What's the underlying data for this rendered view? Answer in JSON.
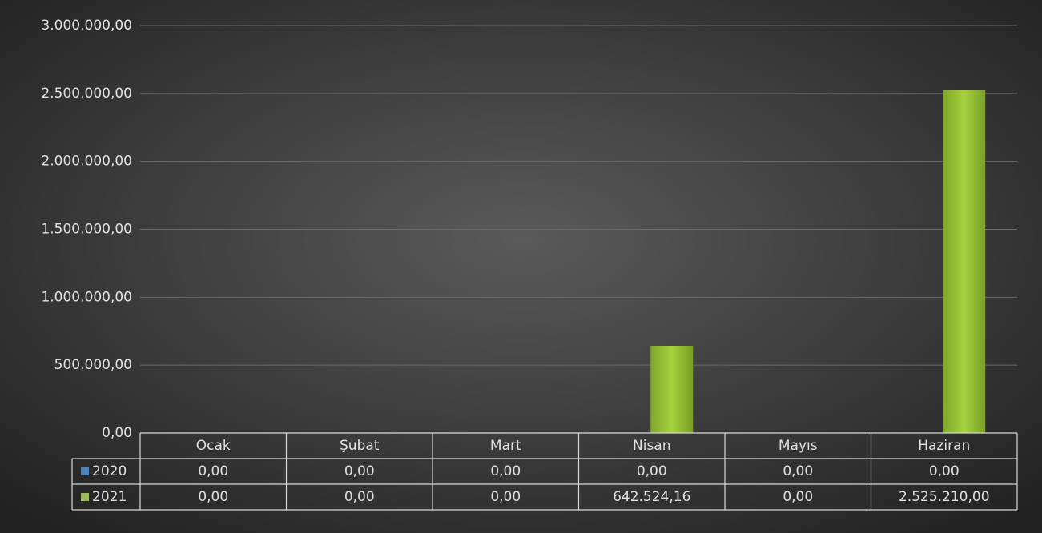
{
  "chart_data": {
    "type": "bar",
    "categories": [
      "Ocak",
      "Şubat",
      "Mart",
      "Nisan",
      "Mayıs",
      "Haziran"
    ],
    "series": [
      {
        "name": "2020",
        "color": "#4f81bd",
        "values": [
          0,
          0,
          0,
          0,
          0,
          0
        ],
        "value_labels": [
          "0,00",
          "0,00",
          "0,00",
          "0,00",
          "0,00",
          "0,00"
        ]
      },
      {
        "name": "2021",
        "color": "#9bbb59",
        "values": [
          0,
          0,
          0,
          642524.16,
          0,
          2525210
        ],
        "value_labels": [
          "0,00",
          "0,00",
          "0,00",
          "642.524,16",
          "0,00",
          "2.525.210,00"
        ]
      }
    ],
    "ylim": [
      0,
      3000000
    ],
    "yticks": [
      {
        "value": 0,
        "label": "0,00"
      },
      {
        "value": 500000,
        "label": "500.000,00"
      },
      {
        "value": 1000000,
        "label": "1.000.000,00"
      },
      {
        "value": 1500000,
        "label": "1.500.000,00"
      },
      {
        "value": 2000000,
        "label": "2.000.000,00"
      },
      {
        "value": 2500000,
        "label": "2.500.000,00"
      },
      {
        "value": 3000000,
        "label": "3.000.000,00"
      }
    ],
    "grid": true,
    "data_table": true
  }
}
